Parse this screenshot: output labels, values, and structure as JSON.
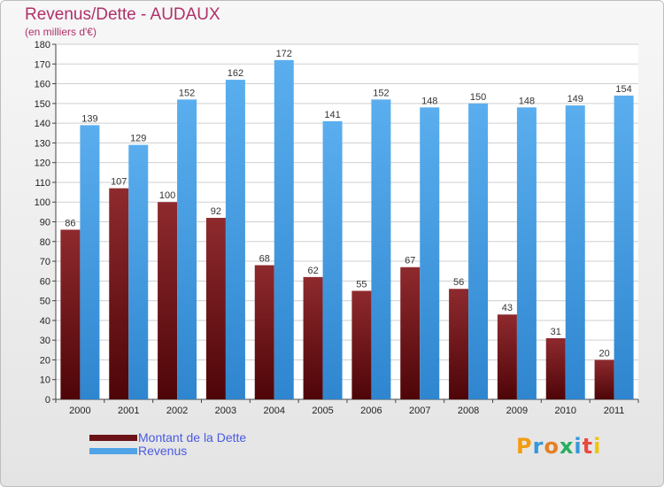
{
  "chart_data": {
    "type": "bar",
    "title": "Revenus/Dette - AUDAUX",
    "subtitle": "(en milliers d'€)",
    "categories": [
      "2000",
      "2001",
      "2002",
      "2003",
      "2004",
      "2005",
      "2006",
      "2007",
      "2008",
      "2009",
      "2010",
      "2011"
    ],
    "series": [
      {
        "name": "Montant de la Dette",
        "color": "#7a1a1f",
        "values": [
          86,
          107,
          100,
          92,
          68,
          62,
          55,
          67,
          56,
          43,
          31,
          20
        ]
      },
      {
        "name": "Revenus",
        "color": "#4fa3e6",
        "values": [
          139,
          129,
          152,
          162,
          172,
          141,
          152,
          148,
          150,
          148,
          149,
          154
        ]
      }
    ],
    "ylim": [
      0,
      180
    ],
    "ytick_step": 10,
    "grid": true,
    "legend_position": "bottom-left"
  },
  "logo": {
    "letters": [
      "P",
      "r",
      "o",
      "x",
      "i",
      "t",
      "i"
    ],
    "colors": [
      "#f39c12",
      "#3498db",
      "#e67e22",
      "#27ae60",
      "#3498db",
      "#e74c3c",
      "#f1c40f"
    ]
  }
}
